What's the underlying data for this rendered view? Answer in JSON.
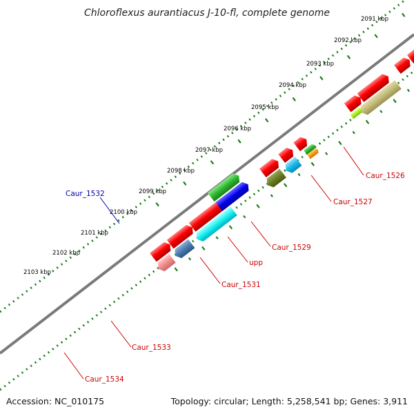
{
  "title": "Chloroflexus aurantiacus J-10-fl, complete genome",
  "ticks": [
    "2091 kbp",
    "2092 kbp",
    "2093 kbp",
    "2094 kbp",
    "2095 kbp",
    "2096 kbp",
    "2097 kbp",
    "2098 kbp",
    "2099 kbp",
    "2100 kbp",
    "2101 kbp",
    "2102 kbp",
    "2103 kbp"
  ],
  "genes": {
    "caur_1526": "Caur_1526",
    "caur_1527": "Caur_1527",
    "caur_1529": "Caur_1529",
    "upp": "upp",
    "caur_1531": "Caur_1531",
    "caur_1532": "Caur_1532",
    "caur_1533": "Caur_1533",
    "caur_1534": "Caur_1534"
  },
  "footer": {
    "accession": "Accession: NC_010175",
    "topology": "Topology: circular; Length: 5,258,541 bp; Genes: 3,911"
  },
  "colors": {
    "backbone": "#7a7a7a",
    "tick": "#1a7a1a",
    "label_red": "#cc0000",
    "label_blue": "#0000aa"
  }
}
